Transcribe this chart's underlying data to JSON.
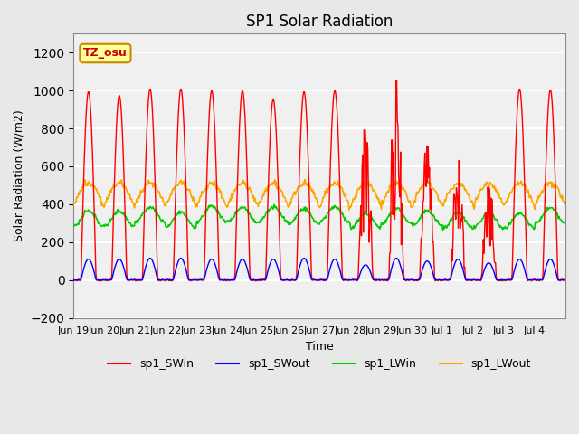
{
  "title": "SP1 Solar Radiation",
  "xlabel": "Time",
  "ylabel": "Solar Radiation (W/m2)",
  "ylim": [
    -200,
    1300
  ],
  "yticks": [
    -200,
    0,
    200,
    400,
    600,
    800,
    1000,
    1200
  ],
  "xlabels": [
    "Jun 19",
    "Jun 20",
    "Jun 21",
    "Jun 22",
    "Jun 23",
    "Jun 24",
    "Jun 25",
    "Jun 26",
    "Jun 27",
    "Jun 28",
    "Jun 29",
    "Jun 30",
    "Jul 1",
    "Jul 2",
    "Jul 3",
    "Jul 4"
  ],
  "colors": {
    "sp1_SWin": "#FF0000",
    "sp1_SWout": "#0000FF",
    "sp1_LWin": "#00CC00",
    "sp1_LWout": "#FFA500"
  },
  "annotation_text": "TZ_osu",
  "annotation_color": "#CC0000",
  "annotation_bg": "#FFFF99",
  "annotation_border": "#CC8800",
  "background_color": "#E8E8E8",
  "plot_bg_color": "#F0F0F0",
  "grid_color": "#FFFFFF",
  "n_days": 16,
  "points_per_day": 48,
  "SWin_peaks": [
    995,
    975,
    1010,
    1010,
    1000,
    1000,
    955,
    995,
    1000,
    880,
    1055,
    830,
    700,
    590,
    1010,
    1005
  ],
  "SWout_peaks": [
    110,
    110,
    115,
    115,
    110,
    110,
    110,
    115,
    110,
    80,
    115,
    100,
    110,
    90,
    110,
    110
  ],
  "LWin_base": 330,
  "LWin_amp": 40,
  "LWout_base": 390,
  "LWout_amp": 120,
  "cloudy_days": [
    9,
    10,
    11,
    12,
    13
  ]
}
